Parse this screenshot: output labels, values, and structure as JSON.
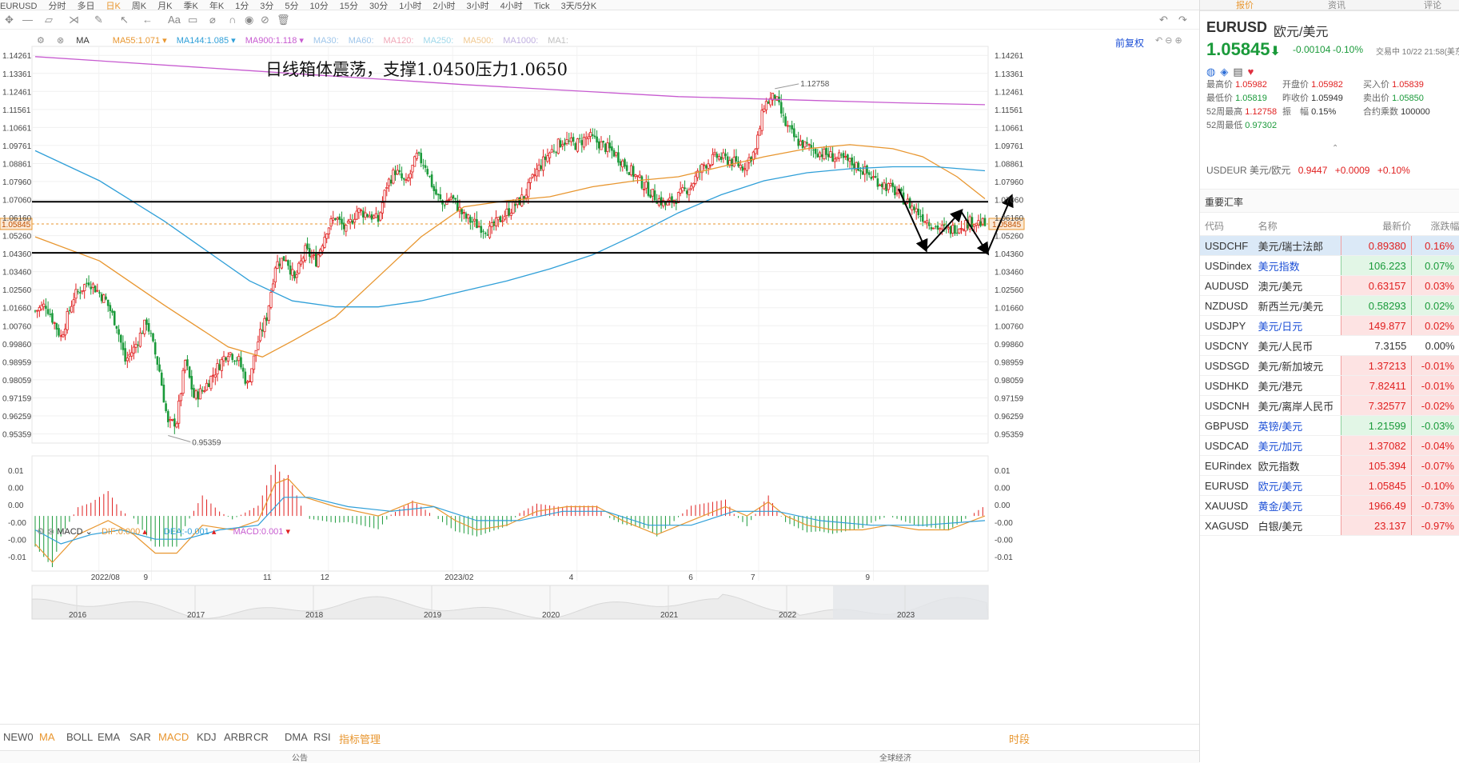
{
  "topbar": {
    "items": [
      "EURUSD",
      "分时",
      "多日",
      "日K",
      "周K",
      "月K",
      "季K",
      "年K",
      "1分",
      "3分",
      "5分",
      "10分",
      "15分",
      "30分",
      "1小时",
      "2小时",
      "3小时",
      "4小时",
      "Tick",
      "3天/5分K"
    ]
  },
  "main_indicator": {
    "name": "MA",
    "items": [
      {
        "label": "MA55:",
        "value": "1.071",
        "color": "#e8962f"
      },
      {
        "label": "MA144:",
        "value": "1.085",
        "color": "#2f9fd8"
      },
      {
        "label": "MA900:",
        "value": "1.118",
        "color": "#c75bd0"
      },
      {
        "label": "MA30:",
        "value": "",
        "color": "#9fc6ea"
      },
      {
        "label": "MA60:",
        "value": "",
        "color": "#9fc6ea"
      },
      {
        "label": "MA120:",
        "value": "",
        "color": "#f0a8b8"
      },
      {
        "label": "MA250:",
        "value": "",
        "color": "#9fd8ea"
      },
      {
        "label": "MA500:",
        "value": "",
        "color": "#f0c890"
      },
      {
        "label": "MA1000:",
        "value": "",
        "color": "#c0b0e0"
      },
      {
        "label": "MA1:",
        "value": "",
        "color": "#c0c0c0"
      }
    ],
    "adjust": "前复权"
  },
  "annotation": "日线箱体震荡，支撑1.0450压力1.0650",
  "high_label": "1.12758",
  "low_label": "0.95359",
  "current_price": "1.05845",
  "macd": {
    "name": "MACD",
    "dif_label": "DIF:",
    "dif": "0.000",
    "dea_label": "DEA:",
    "dea": "-0.001",
    "macd_label": "MACD:",
    "macd_val": "0.001"
  },
  "overview_years": [
    "2016",
    "2017",
    "2018",
    "2019",
    "2020",
    "2021",
    "2022",
    "2023"
  ],
  "bottom_tabs": [
    "NEW0",
    "MA",
    "BOLL",
    "EMA",
    "SAR",
    "MACD",
    "KDJ",
    "ARBR",
    "CR",
    "DMA",
    "RSI",
    "指标管理"
  ],
  "bottom_right": "时段",
  "bottom_row2": [
    "公告",
    "全球经济"
  ],
  "right": {
    "tabs": [
      "报价",
      "资讯",
      "评论"
    ],
    "symbol": "EURUSD",
    "name": "欧元/美元",
    "price": "1.05845",
    "change": "-0.00104",
    "pct": "-0.10%",
    "status": "交易中 10/22 21:58(美东)",
    "fields": [
      {
        "k": "最高价",
        "v": "1.05982",
        "c": "red"
      },
      {
        "k": "开盘价",
        "v": "1.05982",
        "c": "red"
      },
      {
        "k": "买入价",
        "v": "1.05839",
        "c": "red"
      },
      {
        "k": "最低价",
        "v": "1.05819",
        "c": "green"
      },
      {
        "k": "昨收价",
        "v": "1.05949",
        "c": "plain"
      },
      {
        "k": "卖出价",
        "v": "1.05850",
        "c": "green"
      },
      {
        "k": "52周最高",
        "v": "1.12758",
        "c": "red"
      },
      {
        "k": "振　幅",
        "v": "0.15%",
        "c": "plain"
      },
      {
        "k": "合约乘数",
        "v": "100000",
        "c": "plain"
      },
      {
        "k": "52周最低",
        "v": "0.97302",
        "c": "green"
      }
    ],
    "related": {
      "code": "USDEUR",
      "name": "美元/欧元",
      "price": "0.9447",
      "change": "+0.0009",
      "pct": "+0.10%"
    },
    "section_title": "重要汇率",
    "cols": [
      "代码",
      "名称",
      "最新价",
      "涨跌幅"
    ],
    "rows": [
      {
        "code": "USDCHF",
        "name": "美元/瑞士法郎",
        "price": "0.89380",
        "pct": "0.16%",
        "pc": "red",
        "sel": true
      },
      {
        "code": "USDindex",
        "name": "美元指数",
        "price": "106.223",
        "pct": "0.07%",
        "pc": "green",
        "link": true
      },
      {
        "code": "AUDUSD",
        "name": "澳元/美元",
        "price": "0.63157",
        "pct": "0.03%",
        "pc": "red"
      },
      {
        "code": "NZDUSD",
        "name": "新西兰元/美元",
        "price": "0.58293",
        "pct": "0.02%",
        "pc": "green"
      },
      {
        "code": "USDJPY",
        "name": "美元/日元",
        "price": "149.877",
        "pct": "0.02%",
        "pc": "red",
        "link": true
      },
      {
        "code": "USDCNY",
        "name": "美元/人民币",
        "price": "7.3155",
        "pct": "0.00%",
        "pc": "plain"
      },
      {
        "code": "USDSGD",
        "name": "美元/新加坡元",
        "price": "1.37213",
        "pct": "-0.01%",
        "pc": "red"
      },
      {
        "code": "USDHKD",
        "name": "美元/港元",
        "price": "7.82411",
        "pct": "-0.01%",
        "pc": "red"
      },
      {
        "code": "USDCNH",
        "name": "美元/离岸人民币",
        "price": "7.32577",
        "pct": "-0.02%",
        "pc": "red"
      },
      {
        "code": "GBPUSD",
        "name": "英镑/美元",
        "price": "1.21599",
        "pct": "-0.03%",
        "pc": "green",
        "link": true
      },
      {
        "code": "USDCAD",
        "name": "美元/加元",
        "price": "1.37082",
        "pct": "-0.04%",
        "pc": "red",
        "link": true
      },
      {
        "code": "EURindex",
        "name": "欧元指数",
        "price": "105.394",
        "pct": "-0.07%",
        "pc": "red"
      },
      {
        "code": "EURUSD",
        "name": "欧元/美元",
        "price": "1.05845",
        "pct": "-0.10%",
        "pc": "red",
        "link": true
      },
      {
        "code": "XAUUSD",
        "name": "黄金/美元",
        "price": "1966.49",
        "pct": "-0.73%",
        "pc": "red",
        "link": true
      },
      {
        "code": "XAGUSD",
        "name": "白银/美元",
        "price": "23.137",
        "pct": "-0.97%",
        "pc": "red"
      }
    ]
  },
  "chart_data": [
    {
      "type": "candlestick",
      "title": "EURUSD",
      "x_ticks": [
        "2022/08",
        "9",
        "11",
        "12",
        "2023/02",
        "4",
        "6",
        "7",
        "9"
      ],
      "y_ticks": [
        "1.14261",
        "1.13361",
        "1.12461",
        "1.11561",
        "1.10661",
        "1.09761",
        "1.08861",
        "1.07960",
        "1.07060",
        "1.06160",
        "1.05260",
        "1.04360",
        "1.03460",
        "1.02560",
        "1.01660",
        "1.00760",
        "0.99860",
        "0.98959",
        "0.98059",
        "0.97159",
        "0.96259",
        "0.95359"
      ],
      "ylim": [
        0.949,
        1.1471
      ],
      "close_path": [
        [
          0,
          1.015
        ],
        [
          5,
          1.018
        ],
        [
          12,
          1.002
        ],
        [
          18,
          1.022
        ],
        [
          25,
          1.03
        ],
        [
          33,
          1.02
        ],
        [
          38,
          1.008
        ],
        [
          42,
          0.99
        ],
        [
          46,
          0.996
        ],
        [
          52,
          1.01
        ],
        [
          58,
          0.985
        ],
        [
          62,
          0.958
        ],
        [
          66,
          0.96
        ],
        [
          70,
          0.99
        ],
        [
          74,
          0.972
        ],
        [
          78,
          0.975
        ],
        [
          84,
          0.985
        ],
        [
          90,
          0.995
        ],
        [
          95,
          0.99
        ],
        [
          99,
          0.978
        ],
        [
          104,
          1.0
        ],
        [
          108,
          1.012
        ],
        [
          112,
          1.038
        ],
        [
          117,
          1.042
        ],
        [
          121,
          1.03
        ],
        [
          126,
          1.045
        ],
        [
          131,
          1.04
        ],
        [
          136,
          1.056
        ],
        [
          140,
          1.062
        ],
        [
          145,
          1.055
        ],
        [
          150,
          1.065
        ],
        [
          156,
          1.063
        ],
        [
          160,
          1.06
        ],
        [
          164,
          1.078
        ],
        [
          168,
          1.085
        ],
        [
          173,
          1.078
        ],
        [
          178,
          1.092
        ],
        [
          182,
          1.088
        ],
        [
          186,
          1.075
        ],
        [
          190,
          1.068
        ],
        [
          194,
          1.072
        ],
        [
          200,
          1.062
        ],
        [
          206,
          1.058
        ],
        [
          212,
          1.055
        ],
        [
          218,
          1.062
        ],
        [
          224,
          1.068
        ],
        [
          228,
          1.072
        ],
        [
          234,
          1.085
        ],
        [
          240,
          1.094
        ],
        [
          246,
          1.1
        ],
        [
          252,
          1.098
        ],
        [
          258,
          1.102
        ],
        [
          264,
          1.098
        ],
        [
          270,
          1.094
        ],
        [
          276,
          1.087
        ],
        [
          282,
          1.08
        ],
        [
          288,
          1.073
        ],
        [
          294,
          1.068
        ],
        [
          300,
          1.072
        ],
        [
          306,
          1.078
        ],
        [
          312,
          1.088
        ],
        [
          318,
          1.092
        ],
        [
          324,
          1.09
        ],
        [
          330,
          1.087
        ],
        [
          336,
          1.095
        ],
        [
          340,
          1.118
        ],
        [
          345,
          1.122
        ],
        [
          350,
          1.108
        ],
        [
          355,
          1.1
        ],
        [
          360,
          1.097
        ],
        [
          366,
          1.094
        ],
        [
          372,
          1.092
        ],
        [
          378,
          1.09
        ],
        [
          384,
          1.087
        ],
        [
          390,
          1.082
        ],
        [
          396,
          1.078
        ],
        [
          402,
          1.074
        ],
        [
          408,
          1.068
        ],
        [
          414,
          1.062
        ],
        [
          420,
          1.057
        ],
        [
          426,
          1.055
        ],
        [
          432,
          1.058
        ],
        [
          438,
          1.06
        ],
        [
          443,
          1.058
        ]
      ],
      "series": [
        {
          "name": "MA55",
          "values": [
            [
              0,
              1.052
            ],
            [
              30,
              1.04
            ],
            [
              60,
              1.018
            ],
            [
              90,
              0.997
            ],
            [
              106,
              0.992
            ],
            [
              120,
              1.0
            ],
            [
              140,
              1.012
            ],
            [
              160,
              1.032
            ],
            [
              180,
              1.052
            ],
            [
              200,
              1.067
            ],
            [
              220,
              1.07
            ],
            [
              240,
              1.072
            ],
            [
              260,
              1.077
            ],
            [
              280,
              1.08
            ],
            [
              300,
              1.082
            ],
            [
              320,
              1.087
            ],
            [
              340,
              1.092
            ],
            [
              360,
              1.096
            ],
            [
              380,
              1.098
            ],
            [
              400,
              1.096
            ],
            [
              414,
              1.092
            ],
            [
              430,
              1.082
            ],
            [
              443,
              1.071
            ]
          ]
        },
        {
          "name": "MA144",
          "values": [
            [
              0,
              1.095
            ],
            [
              30,
              1.08
            ],
            [
              60,
              1.06
            ],
            [
              80,
              1.045
            ],
            [
              100,
              1.03
            ],
            [
              120,
              1.02
            ],
            [
              140,
              1.017
            ],
            [
              160,
              1.017
            ],
            [
              180,
              1.02
            ],
            [
              200,
              1.025
            ],
            [
              220,
              1.03
            ],
            [
              240,
              1.036
            ],
            [
              260,
              1.043
            ],
            [
              280,
              1.053
            ],
            [
              300,
              1.064
            ],
            [
              320,
              1.073
            ],
            [
              340,
              1.08
            ],
            [
              360,
              1.084
            ],
            [
              380,
              1.086
            ],
            [
              400,
              1.087
            ],
            [
              420,
              1.087
            ],
            [
              443,
              1.085
            ]
          ]
        },
        {
          "name": "MA900",
          "values": [
            [
              0,
              1.142
            ],
            [
              100,
              1.135
            ],
            [
              200,
              1.128
            ],
            [
              300,
              1.122
            ],
            [
              400,
              1.119
            ],
            [
              443,
              1.118
            ]
          ]
        }
      ]
    },
    {
      "type": "bar+line",
      "title": "MACD",
      "y_ticks": [
        "0.01",
        "0.00",
        "0.00",
        "-0.00",
        "-0.00",
        "-0.01"
      ],
      "ylim": [
        -0.0115,
        0.0105
      ],
      "series": [
        {
          "name": "DIF",
          "values": [
            [
              0,
              -0.006
            ],
            [
              8,
              -0.01
            ],
            [
              20,
              -0.004
            ],
            [
              34,
              -0.001
            ],
            [
              46,
              -0.004
            ],
            [
              56,
              -0.008
            ],
            [
              66,
              -0.008
            ],
            [
              78,
              -0.002
            ],
            [
              92,
              -0.003
            ],
            [
              104,
              -0.001
            ],
            [
              112,
              0.007
            ],
            [
              118,
              0.008
            ],
            [
              126,
              0.004
            ],
            [
              140,
              0.002
            ],
            [
              160,
              0.0
            ],
            [
              176,
              0.003
            ],
            [
              186,
              0.002
            ],
            [
              196,
              -0.001
            ],
            [
              206,
              -0.003
            ],
            [
              220,
              -0.002
            ],
            [
              234,
              0.001
            ],
            [
              248,
              0.002
            ],
            [
              262,
              0.002
            ],
            [
              274,
              -0.001
            ],
            [
              290,
              -0.004
            ],
            [
              306,
              -0.001
            ],
            [
              322,
              0.002
            ],
            [
              332,
              0.0
            ],
            [
              342,
              0.003
            ],
            [
              350,
              0.0
            ],
            [
              360,
              -0.002
            ],
            [
              372,
              -0.003
            ],
            [
              386,
              -0.003
            ],
            [
              398,
              -0.002
            ],
            [
              412,
              -0.003
            ],
            [
              426,
              -0.003
            ],
            [
              443,
              0.0
            ]
          ]
        },
        {
          "name": "DEA",
          "values": [
            [
              0,
              -0.003
            ],
            [
              12,
              -0.006
            ],
            [
              26,
              -0.004
            ],
            [
              40,
              -0.003
            ],
            [
              56,
              -0.005
            ],
            [
              70,
              -0.005
            ],
            [
              86,
              -0.003
            ],
            [
              104,
              -0.002
            ],
            [
              116,
              0.004
            ],
            [
              128,
              0.004
            ],
            [
              146,
              0.002
            ],
            [
              166,
              0.001
            ],
            [
              186,
              0.002
            ],
            [
              206,
              -0.001
            ],
            [
              226,
              -0.001
            ],
            [
              246,
              0.001
            ],
            [
              266,
              0.001
            ],
            [
              286,
              -0.002
            ],
            [
              306,
              -0.002
            ],
            [
              326,
              0.001
            ],
            [
              346,
              0.001
            ],
            [
              366,
              -0.001
            ],
            [
              390,
              -0.002
            ],
            [
              414,
              -0.002
            ],
            [
              443,
              -0.001
            ]
          ]
        },
        {
          "name": "MACD",
          "values": []
        }
      ]
    }
  ]
}
